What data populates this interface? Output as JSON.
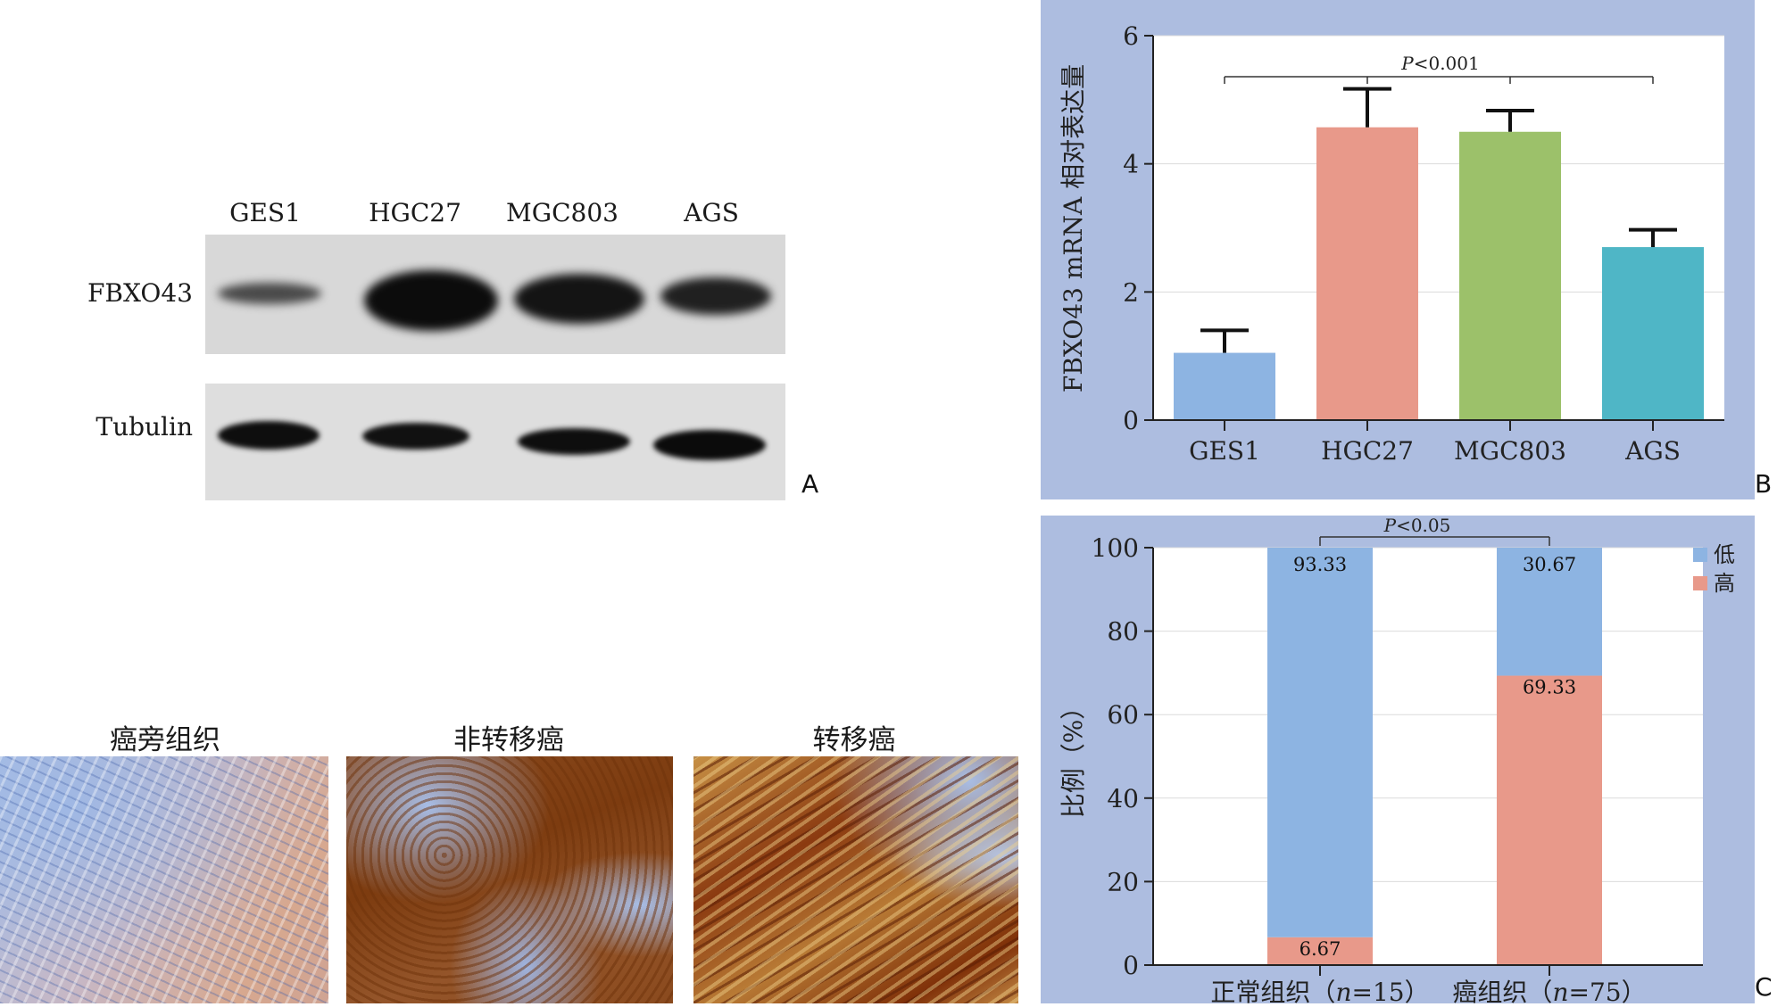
{
  "panel_letters": {
    "a": "A",
    "b": "B",
    "c": "C"
  },
  "western_blot": {
    "lanes": [
      "GES1",
      "HGC27",
      "MGC803",
      "AGS"
    ],
    "rows": [
      "FBXO43",
      "Tubulin"
    ],
    "colors": {
      "film": "#d6d6d6",
      "band": "#101010"
    }
  },
  "ihc": {
    "panels": [
      {
        "title": "癌旁组织",
        "stain": "low"
      },
      {
        "title": "非转移癌",
        "stain": "high"
      },
      {
        "title": "转移癌",
        "stain": "very-high"
      }
    ],
    "colors": {
      "hematoxylin": "#8ea6d6",
      "dab": "#8a4513"
    }
  },
  "chart_data": [
    {
      "type": "bar",
      "title": "",
      "ylabel": "FBXO43 mRNA 相对表达量",
      "xlabel": "",
      "ylim": [
        0,
        6
      ],
      "yticks": [
        "0",
        "2",
        "4",
        "6"
      ],
      "categories": [
        "GES1",
        "HGC27",
        "MGC803",
        "AGS"
      ],
      "values": [
        1.05,
        4.57,
        4.5,
        2.7
      ],
      "errors": [
        0.35,
        0.6,
        0.33,
        0.27
      ],
      "colors": [
        "#8db4e2",
        "#e8998a",
        "#9cc16a",
        "#4fb6c6"
      ],
      "annotation": {
        "p_letter": "P",
        "p_rest": "<0.001"
      },
      "grid": true,
      "background": "#adbde0"
    },
    {
      "type": "bar",
      "stacked": true,
      "title": "",
      "ylabel": "比例（%）",
      "xlabel": "",
      "ylim": [
        0,
        100
      ],
      "yticks": [
        "0",
        "20",
        "40",
        "60",
        "80",
        "100"
      ],
      "categories": [
        {
          "name": "正常组织",
          "n_letter": "n",
          "n_value": "=15"
        },
        {
          "name": "癌组织",
          "n_letter": "n",
          "n_value": "=75"
        }
      ],
      "series": [
        {
          "name": "高",
          "values": [
            6.67,
            69.33
          ],
          "labels": [
            "6.67",
            "69.33"
          ],
          "color": "#e8998a"
        },
        {
          "name": "低",
          "values": [
            93.33,
            30.67
          ],
          "labels": [
            "93.33",
            "30.67"
          ],
          "color": "#8db4e2"
        }
      ],
      "annotation": {
        "p_letter": "P",
        "p_rest": "<0.05"
      },
      "legend": {
        "placement": "top-right",
        "order": [
          "低",
          "高"
        ]
      },
      "grid": true,
      "background": "#adbde0"
    }
  ]
}
